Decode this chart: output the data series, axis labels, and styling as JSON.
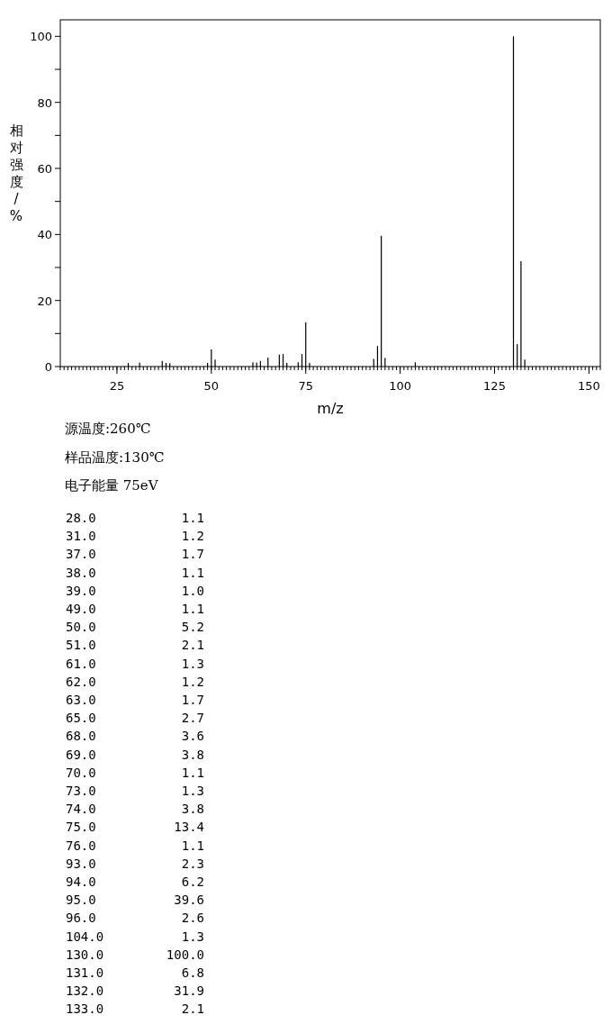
{
  "chart_data": [
    {
      "type": "bar",
      "ylabel": "相对强度/%",
      "xlabel": "m/z",
      "x": [
        28,
        31,
        37,
        38,
        39,
        49,
        50,
        51,
        61,
        62,
        63,
        65,
        68,
        69,
        70,
        73,
        74,
        75,
        76,
        93,
        94,
        95,
        96,
        104,
        130,
        131,
        132,
        133
      ],
      "values": [
        1.1,
        1.2,
        1.7,
        1.1,
        1.0,
        1.1,
        5.2,
        2.1,
        1.3,
        1.2,
        1.7,
        2.7,
        3.6,
        3.8,
        1.1,
        1.3,
        3.8,
        13.4,
        1.1,
        2.3,
        6.2,
        39.6,
        2.6,
        1.3,
        100.0,
        6.8,
        31.9,
        2.1
      ],
      "color": "#000000",
      "xlim": [
        10,
        153
      ],
      "ylim": [
        0,
        105
      ],
      "xticks": [
        25,
        50,
        75,
        100,
        125,
        150
      ],
      "yticks": [
        0,
        {
          "value": 10,
          "label": null
        },
        20,
        {
          "value": 30,
          "label": null
        },
        40,
        {
          "value": 50,
          "label": null
        },
        60,
        {
          "value": 70,
          "label": null
        },
        80,
        {
          "value": 90,
          "label": null
        },
        100
      ],
      "annotations": [
        "源温度:260℃",
        "样品温度:130℃",
        "电子能量 75eV"
      ]
    },
    {
      "type": "other",
      "categories": [
        "28.0",
        "31.0",
        "37.0",
        "38.0",
        "39.0",
        "49.0",
        "50.0",
        "51.0",
        "61.0",
        "62.0",
        "63.0",
        "65.0",
        "68.0",
        "69.0",
        "70.0",
        "73.0",
        "74.0",
        "75.0",
        "76.0",
        "93.0",
        "94.0",
        "95.0",
        "96.0",
        "104.0",
        "130.0",
        "131.0",
        "132.0",
        "133.0"
      ],
      "values": [
        1.1,
        1.2,
        1.7,
        1.1,
        1.0,
        1.1,
        5.2,
        2.1,
        1.3,
        1.2,
        1.7,
        2.7,
        3.6,
        3.8,
        1.1,
        1.3,
        3.8,
        13.4,
        1.1,
        2.3,
        6.2,
        39.6,
        2.6,
        1.3,
        100.0,
        6.8,
        31.9,
        2.1
      ],
      "value_labels": [
        "1.1",
        "1.2",
        "1.7",
        "1.1",
        "1.0",
        "1.1",
        "5.2",
        "2.1",
        "1.3",
        "1.2",
        "1.7",
        "2.7",
        "3.6",
        "3.8",
        "1.1",
        "1.3",
        "3.8",
        "13.4",
        "1.1",
        "2.3",
        "6.2",
        "39.6",
        "2.6",
        "1.3",
        "100.0",
        "6.8",
        "31.9",
        "2.1"
      ]
    }
  ]
}
